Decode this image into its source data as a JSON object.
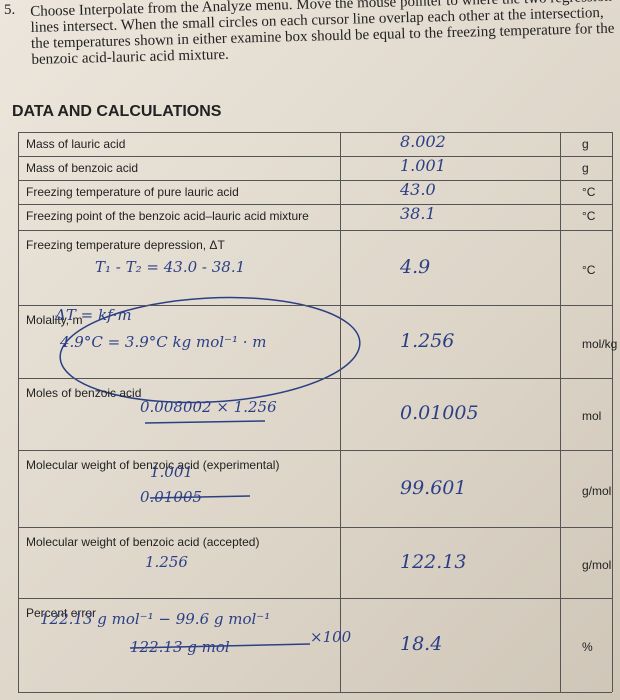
{
  "header": {
    "number": "5.",
    "text": "Choose Interpolate from the Analyze menu. Move the mouse pointer to where the two regression lines intersect. When the small circles on each cursor line overlap each other at the intersection, the temperatures shown in either examine box should be equal to the freezing temperature for the benzoic acid-lauric acid mixture."
  },
  "section_title": "DATA AND CALCULATIONS",
  "rows": [
    {
      "label": "Mass of lauric acid",
      "work": [],
      "value": "8.002",
      "unit": "g"
    },
    {
      "label": "Mass of benzoic acid",
      "work": [],
      "value": "1.001",
      "unit": "g"
    },
    {
      "label": "Freezing temperature of pure lauric acid",
      "work": [],
      "value": "43.0",
      "unit": "°C"
    },
    {
      "label": "Freezing point of the benzoic acid–lauric acid mixture",
      "work": [],
      "value": "38.1",
      "unit": "°C"
    },
    {
      "label": "Freezing temperature depression, ΔT",
      "work": [
        "T₁ - T₂ = 43.0 - 38.1"
      ],
      "value": "4.9",
      "unit": "°C"
    },
    {
      "label": "Molality, m",
      "work": [
        "ΔT = kf·m",
        "4.9°C = 3.9°C kg mol⁻¹ · m"
      ],
      "value": "1.256",
      "unit": "mol/kg"
    },
    {
      "label": "Moles of benzoic acid",
      "work": [
        "0.008002 × 1.256"
      ],
      "value": "0.01005",
      "unit": "mol"
    },
    {
      "label": "Molecular weight of benzoic acid (experimental)",
      "work": [
        "1.001",
        "0.01005"
      ],
      "value": "99.601",
      "unit": "g/mol"
    },
    {
      "label": "Molecular weight of benzoic acid (accepted)",
      "work": [
        "1.256"
      ],
      "value": "122.13",
      "unit": "g/mol"
    },
    {
      "label": "Percent error",
      "work": [
        "122.13 g mol⁻¹ − 99.6 g mol⁻¹",
        "122.13 g mol",
        "×100"
      ],
      "value": "18.4",
      "unit": "%"
    }
  ]
}
